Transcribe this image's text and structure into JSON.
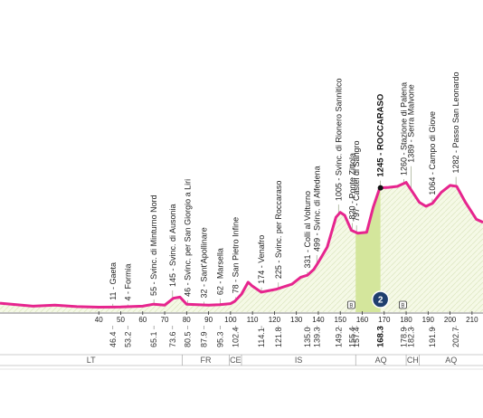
{
  "chart_data": {
    "type": "area",
    "colors": {
      "profile": "#e6258e",
      "fill": "#f5f9e6",
      "climb_fill": "#d4e69c",
      "grid": "#c9d6a8",
      "marker": "#1f3f6e",
      "hatch": "#dfe8c5"
    },
    "xlim": [
      -5,
      215
    ],
    "ylim": [
      0,
      1450
    ],
    "x_ticks": [
      40,
      50,
      60,
      70,
      80,
      90,
      100,
      110,
      120,
      130,
      140,
      150,
      160,
      170,
      180,
      190,
      200,
      210
    ],
    "profile": [
      [
        -5,
        90
      ],
      [
        10,
        60
      ],
      [
        20,
        70
      ],
      [
        30,
        55
      ],
      [
        40,
        50
      ],
      [
        50,
        52
      ],
      [
        60,
        60
      ],
      [
        65,
        80
      ],
      [
        70,
        70
      ],
      [
        74,
        140
      ],
      [
        77,
        150
      ],
      [
        80,
        80
      ],
      [
        90,
        70
      ],
      [
        95,
        75
      ],
      [
        100,
        85
      ],
      [
        102,
        110
      ],
      [
        105,
        180
      ],
      [
        108,
        300
      ],
      [
        110,
        260
      ],
      [
        114,
        200
      ],
      [
        121,
        230
      ],
      [
        128,
        280
      ],
      [
        132,
        350
      ],
      [
        135,
        370
      ],
      [
        138,
        430
      ],
      [
        140,
        500
      ],
      [
        144,
        650
      ],
      [
        148,
        950
      ],
      [
        150,
        1000
      ],
      [
        152,
        970
      ],
      [
        155,
        820
      ],
      [
        158,
        790
      ],
      [
        162,
        800
      ],
      [
        165,
        1050
      ],
      [
        168,
        1245
      ],
      [
        172,
        1250
      ],
      [
        176,
        1260
      ],
      [
        180,
        1300
      ],
      [
        183,
        1200
      ],
      [
        186,
        1100
      ],
      [
        189,
        1060
      ],
      [
        192,
        1090
      ],
      [
        196,
        1200
      ],
      [
        200,
        1270
      ],
      [
        203,
        1260
      ],
      [
        207,
        1100
      ],
      [
        212,
        930
      ],
      [
        215,
        900
      ]
    ],
    "climb_segment": [
      157,
      168.3
    ],
    "places": [
      {
        "x": 46.4,
        "alt": 11,
        "name": "11 - Gaeta"
      },
      {
        "x": 53.2,
        "alt": 4,
        "name": "4 - Formia"
      },
      {
        "x": 65.1,
        "alt": 55,
        "name": "55 - Svinc. di Minturno Nord"
      },
      {
        "x": 73.6,
        "alt": 145,
        "name": "145 - Svinc. di Ausonia"
      },
      {
        "x": 80.5,
        "alt": 46,
        "name": "46 - Svinc. per San Giorgio a Liri"
      },
      {
        "x": 87.9,
        "alt": 32,
        "name": "32 - Sant'Apollinare"
      },
      {
        "x": 95.3,
        "alt": 62,
        "name": "62 - Marsella"
      },
      {
        "x": 102.4,
        "alt": 78,
        "name": "78 - San Pietro Infine"
      },
      {
        "x": 114.1,
        "alt": 174,
        "name": "174 - Venafro"
      },
      {
        "x": 121.8,
        "alt": 225,
        "name": "225 - Svinc. per Roccaraso"
      },
      {
        "x": 135.0,
        "alt": 331,
        "name": "331 - Colli al Volturno"
      },
      {
        "x": 139.3,
        "alt": 499,
        "name": "499 - Svinc. di Alfedena"
      },
      {
        "x": 149.2,
        "alt": 1005,
        "name": "1005 - Svinc. di Rionero Sannitico"
      },
      {
        "x": 155.4,
        "alt": 820,
        "name": "820 - Ponte Zittola"
      },
      {
        "x": 157.4,
        "alt": 797,
        "name": "797 - Castel di Sangro"
      },
      {
        "x": 168.3,
        "alt": 1245,
        "name": "1245 - ROCCARASO",
        "bold": true
      },
      {
        "x": 178.9,
        "alt": 1260,
        "name": "1260 - Stazione di Palena"
      },
      {
        "x": 182.3,
        "alt": 1389,
        "name": "1389 - Serra Malvone"
      },
      {
        "x": 191.9,
        "alt": 1064,
        "name": "1064 - Campo di Giove"
      },
      {
        "x": 202.7,
        "alt": 1282,
        "name": "1282 - Passo San Leonardo"
      }
    ],
    "distances": [
      {
        "x": 46.4,
        "label": "46.4"
      },
      {
        "x": 53.2,
        "label": "53.2"
      },
      {
        "x": 65.1,
        "label": "65.1"
      },
      {
        "x": 73.6,
        "label": "73.6"
      },
      {
        "x": 80.5,
        "label": "80.5"
      },
      {
        "x": 87.9,
        "label": "87.9"
      },
      {
        "x": 95.3,
        "label": "95.3"
      },
      {
        "x": 102.4,
        "label": "102.4"
      },
      {
        "x": 114.1,
        "label": "114.1"
      },
      {
        "x": 121.8,
        "label": "121.8"
      },
      {
        "x": 135.0,
        "label": "135.0"
      },
      {
        "x": 139.3,
        "label": "139.3"
      },
      {
        "x": 149.2,
        "label": "149.2"
      },
      {
        "x": 155.4,
        "label": "155.4"
      },
      {
        "x": 157.4,
        "label": "157.4"
      },
      {
        "x": 168.3,
        "label": "168.3",
        "bold": true
      },
      {
        "x": 178.9,
        "label": "178.9"
      },
      {
        "x": 182.3,
        "label": "182.3"
      },
      {
        "x": 191.9,
        "label": "191.9"
      },
      {
        "x": 202.7,
        "label": "202.7"
      }
    ],
    "regions": [
      {
        "label": "LT",
        "from": -5,
        "to": 78
      },
      {
        "label": "FR",
        "from": 78,
        "to": 99.5
      },
      {
        "label": "CE",
        "from": 99.5,
        "to": 105
      },
      {
        "label": "IS",
        "from": 105,
        "to": 157
      },
      {
        "label": "AQ",
        "from": 157,
        "to": 180
      },
      {
        "label": "CH",
        "from": 180,
        "to": 186
      },
      {
        "label": "AQ",
        "from": 186,
        "to": 215
      }
    ],
    "sprint_marker": {
      "x": 168.3,
      "label": "2"
    },
    "small_markers": [
      {
        "x": 155.0,
        "label": "B"
      },
      {
        "x": 178.5,
        "label": "B"
      }
    ]
  }
}
